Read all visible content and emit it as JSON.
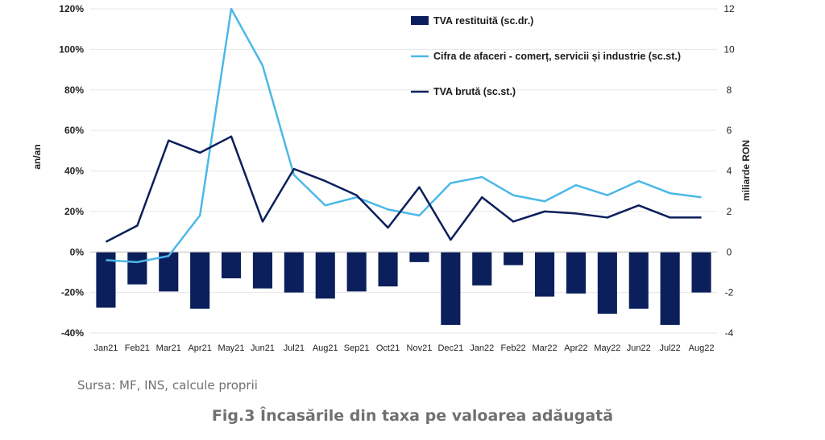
{
  "chart_data": {
    "type": "bar+line",
    "categories": [
      "Jan21",
      "Feb21",
      "Mar21",
      "Apr21",
      "May21",
      "Jun21",
      "Jul21",
      "Aug21",
      "Sep21",
      "Oct21",
      "Nov21",
      "Dec21",
      "Jan22",
      "Feb22",
      "Mar22",
      "Apr22",
      "May22",
      "Jun22",
      "Jul22",
      "Aug22"
    ],
    "series": [
      {
        "name": "TVA restituită (sc.dr.)",
        "kind": "bar",
        "axis": "right",
        "color": "#0b1f5c",
        "values": [
          -2.75,
          -1.6,
          -1.95,
          -2.8,
          -1.3,
          -1.8,
          -2.0,
          -2.3,
          -1.95,
          -1.7,
          -0.5,
          -3.6,
          -1.65,
          -0.65,
          -2.2,
          -2.05,
          -3.05,
          -2.8,
          -3.6,
          -2.0
        ]
      },
      {
        "name": "Cifra de afaceri - comerț, servicii și industrie (sc.st.)",
        "kind": "line",
        "axis": "left",
        "color": "#4cb8e8",
        "values": [
          -4,
          -5,
          -2,
          18,
          120,
          92,
          38,
          23,
          27,
          21,
          18,
          34,
          37,
          28,
          25,
          33,
          28,
          35,
          29,
          27
        ]
      },
      {
        "name": "TVA brută (sc.st.)",
        "kind": "line",
        "axis": "left",
        "color": "#0b1f5c",
        "values": [
          5,
          13,
          55,
          49,
          57,
          15,
          41,
          35,
          28,
          12,
          32,
          6,
          27,
          15,
          20,
          19,
          17,
          23,
          17,
          17
        ]
      }
    ],
    "y_left": {
      "label": "an/an",
      "min": -40,
      "max": 120,
      "ticks": [
        "-40%",
        "-20%",
        "0%",
        "20%",
        "40%",
        "60%",
        "80%",
        "100%",
        "120%"
      ]
    },
    "y_right": {
      "label": "miliarde RON",
      "min": -4,
      "max": 12,
      "ticks": [
        "-4",
        "-2",
        "0",
        "2",
        "4",
        "6",
        "8",
        "10",
        "12"
      ]
    },
    "legend_position": "top-right",
    "grid": true
  },
  "source_text": "Sursa: MF, INS, calcule proprii",
  "caption": "Fig.3 Încasările din taxa pe valoarea adăugată"
}
